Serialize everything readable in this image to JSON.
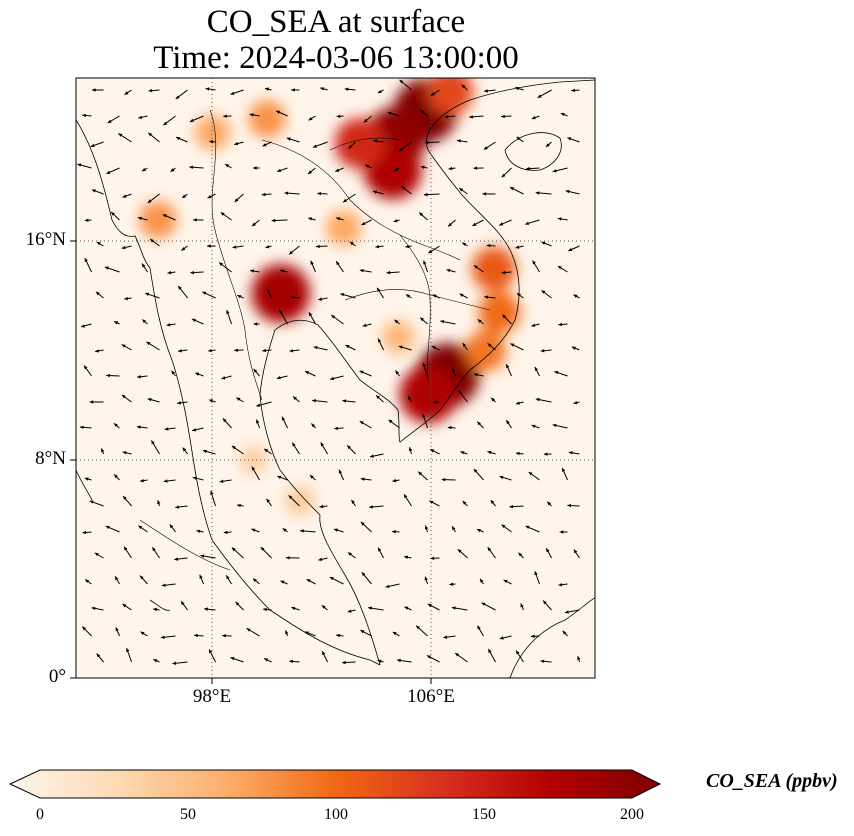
{
  "title_line1": "CO_SEA at surface",
  "title_line2": "Time: 2024-03-06 13:00:00",
  "lat_labels": [
    "16°N",
    "8°N",
    "0°"
  ],
  "lon_labels": [
    "98°E",
    "106°E"
  ],
  "colorbar": {
    "label": "CO_SEA (ppbv)",
    "ticks": [
      "0",
      "50",
      "100",
      "150",
      "200"
    ],
    "min": 0,
    "max": 200,
    "colors": [
      "#fff5eb",
      "#fdd9b3",
      "#fdae6b",
      "#f16913",
      "#d7301f",
      "#b30000",
      "#7f0000"
    ]
  },
  "map": {
    "lon_range": [
      93,
      112
    ],
    "lat_range": [
      0,
      22
    ],
    "hotspots": [
      {
        "lon": 105.8,
        "lat": 20.8,
        "value": 200
      },
      {
        "lon": 104.7,
        "lat": 19.8,
        "value": 190
      },
      {
        "lon": 104.6,
        "lat": 18.6,
        "value": 170
      },
      {
        "lon": 103.4,
        "lat": 19.6,
        "value": 140
      },
      {
        "lon": 100.5,
        "lat": 14.1,
        "value": 175
      },
      {
        "lon": 106.6,
        "lat": 11.1,
        "value": 200
      },
      {
        "lon": 105.9,
        "lat": 10.4,
        "value": 170
      },
      {
        "lon": 108.3,
        "lat": 15.0,
        "value": 110
      },
      {
        "lon": 108.5,
        "lat": 13.4,
        "value": 100
      },
      {
        "lon": 108.0,
        "lat": 12.0,
        "value": 95
      },
      {
        "lon": 106.7,
        "lat": 21.5,
        "value": 120
      },
      {
        "lon": 100.0,
        "lat": 20.5,
        "value": 80
      },
      {
        "lon": 98.0,
        "lat": 20.0,
        "value": 70
      },
      {
        "lon": 96.0,
        "lat": 16.8,
        "value": 80
      },
      {
        "lon": 102.8,
        "lat": 16.5,
        "value": 70
      },
      {
        "lon": 104.8,
        "lat": 12.5,
        "value": 60
      },
      {
        "lon": 101.2,
        "lat": 6.5,
        "value": 45
      },
      {
        "lon": 99.5,
        "lat": 8.0,
        "value": 40
      }
    ]
  }
}
